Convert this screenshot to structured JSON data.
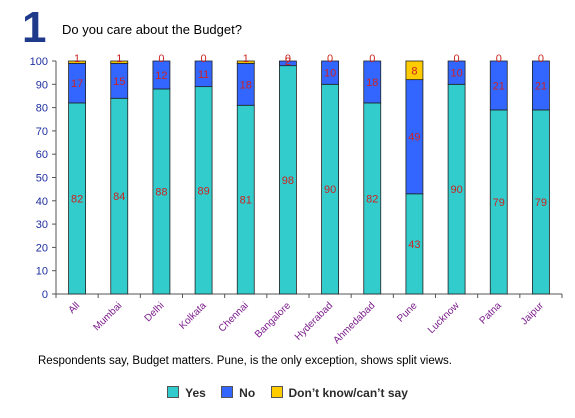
{
  "header": {
    "number": "1",
    "title": "Do you care about the Budget?"
  },
  "caption": "Respondents say, Budget matters. Pune, is the only exception, shows split views.",
  "legend": [
    {
      "label": "Yes",
      "color": "#33cccc"
    },
    {
      "label": "No",
      "color": "#3366ff"
    },
    {
      "label": "Don’t know/can’t say",
      "color": "#ffcc00"
    }
  ],
  "chart_data": {
    "type": "bar",
    "stacked": true,
    "categories": [
      "All",
      "Mumbai",
      "Delhi",
      "Kolkata",
      "Chennai",
      "Bangalore",
      "Hyderabad",
      "Ahmedabad",
      "Pune",
      "Lucknow",
      "Patna",
      "Jaipur"
    ],
    "series": [
      {
        "name": "Yes",
        "color": "#33cccc",
        "values": [
          82,
          84,
          88,
          89,
          81,
          98,
          90,
          82,
          43,
          90,
          79,
          79
        ]
      },
      {
        "name": "No",
        "color": "#3366ff",
        "values": [
          17,
          15,
          12,
          11,
          18,
          2,
          10,
          18,
          49,
          10,
          21,
          21
        ]
      },
      {
        "name": "Don’t know/can’t say",
        "color": "#ffcc00",
        "values": [
          1,
          1,
          0,
          0,
          1,
          0,
          0,
          0,
          8,
          0,
          0,
          0
        ]
      }
    ],
    "ylim": [
      0,
      100
    ],
    "yticks": [
      0,
      10,
      20,
      30,
      40,
      50,
      60,
      70,
      80,
      90,
      100
    ],
    "grid": false,
    "legend_position": "bottom"
  }
}
